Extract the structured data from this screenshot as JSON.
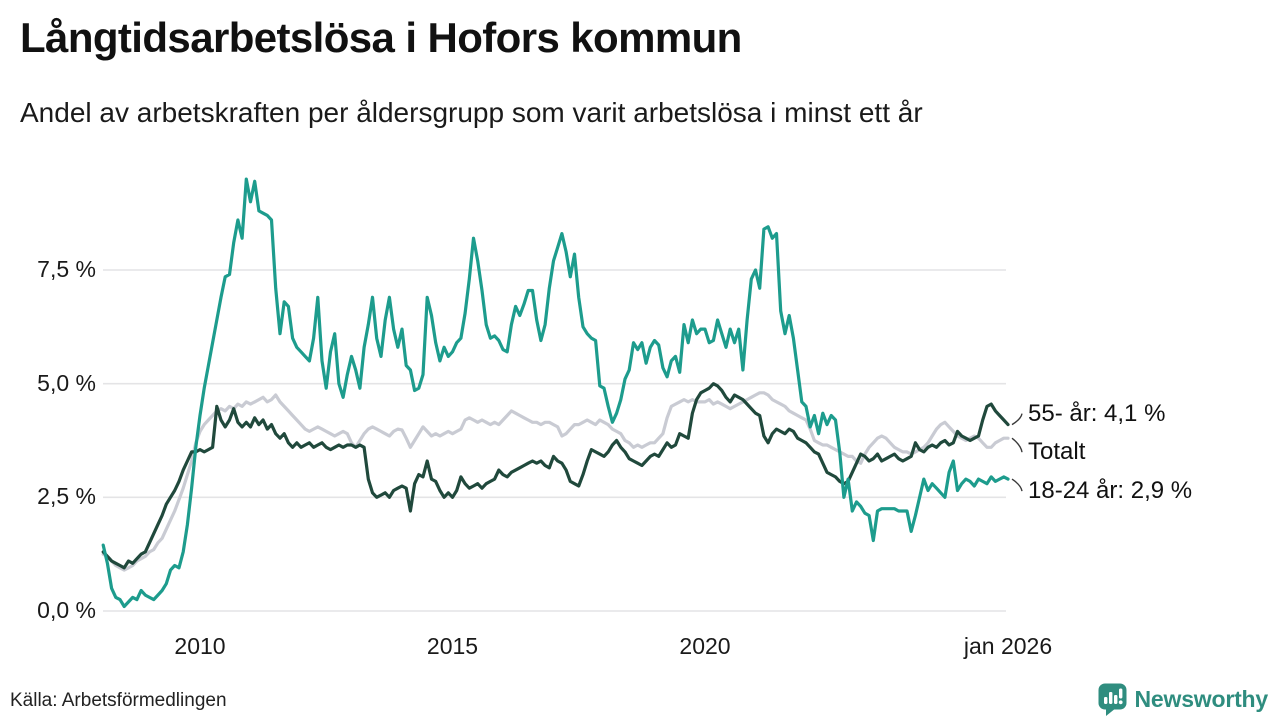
{
  "header": {
    "title": "Långtidsarbetslösa i Hofors kommun",
    "subtitle": "Andel av arbetskraften per åldersgrupp som varit arbetslösa i minst ett år"
  },
  "footer": {
    "source": "Källa: Arbetsförmedlingen",
    "brand": "Newsworthy"
  },
  "colors": {
    "teal": "#1d9c8d",
    "dark_green": "#20493c",
    "gray": "#c9cbd3",
    "grid": "#e4e4e6",
    "connector": "#3a3a3a",
    "brand_teal": "#2f8d7f",
    "text": "#1a1a1a"
  },
  "chart_data": {
    "type": "line",
    "title": "Långtidsarbetslösa i Hofors kommun",
    "xlabel": "",
    "ylabel": "",
    "x_unit": "year (monthly points)",
    "x_start": 2008.0833,
    "x_step": 0.0833333,
    "xlim": [
      2008.0,
      2026.2
    ],
    "ylim": [
      0,
      9.8
    ],
    "grid": "horizontal",
    "legend_position": "right-end-labels",
    "y_ticks": [
      {
        "value": 0,
        "label": "0,0 %"
      },
      {
        "value": 2.5,
        "label": "2,5 %"
      },
      {
        "value": 5,
        "label": "5,0 %"
      },
      {
        "value": 7.5,
        "label": "7,5 %"
      }
    ],
    "x_ticks": [
      {
        "value": 2010,
        "label": "2010"
      },
      {
        "value": 2015,
        "label": "2015"
      },
      {
        "value": 2020,
        "label": "2020"
      },
      {
        "value": 2026,
        "label": "jan 2026"
      }
    ],
    "series": [
      {
        "name": "Totalt",
        "color": "gray",
        "end_label": "Totalt",
        "label_dy": 14,
        "values": [
          1.25,
          1.2,
          1.1,
          1.0,
          0.95,
          0.9,
          0.95,
          1.0,
          1.1,
          1.15,
          1.2,
          1.3,
          1.35,
          1.5,
          1.6,
          1.8,
          2.0,
          2.2,
          2.45,
          2.7,
          3.0,
          3.3,
          3.7,
          3.95,
          4.1,
          4.2,
          4.3,
          4.4,
          4.45,
          4.4,
          4.5,
          4.45,
          4.55,
          4.5,
          4.6,
          4.55,
          4.6,
          4.65,
          4.7,
          4.6,
          4.65,
          4.75,
          4.6,
          4.5,
          4.4,
          4.3,
          4.2,
          4.1,
          4.0,
          3.95,
          4.0,
          4.05,
          4.0,
          3.95,
          3.9,
          3.85,
          3.9,
          3.95,
          3.9,
          3.7,
          3.6,
          3.75,
          3.9,
          4.0,
          4.05,
          4.0,
          3.95,
          3.9,
          3.85,
          3.95,
          4.0,
          3.98,
          3.8,
          3.6,
          3.75,
          3.9,
          4.05,
          3.95,
          3.85,
          3.9,
          3.85,
          3.9,
          3.95,
          3.9,
          3.95,
          4.0,
          4.2,
          4.25,
          4.2,
          4.15,
          4.2,
          4.15,
          4.1,
          4.15,
          4.1,
          4.2,
          4.3,
          4.4,
          4.35,
          4.3,
          4.25,
          4.2,
          4.15,
          4.15,
          4.1,
          4.15,
          4.15,
          4.1,
          4.05,
          3.85,
          3.9,
          4.0,
          4.1,
          4.1,
          4.15,
          4.2,
          4.15,
          4.1,
          4.2,
          4.15,
          4.1,
          4.0,
          3.95,
          3.9,
          3.75,
          3.7,
          3.6,
          3.65,
          3.6,
          3.65,
          3.7,
          3.7,
          3.8,
          3.9,
          4.25,
          4.5,
          4.55,
          4.6,
          4.65,
          4.6,
          4.65,
          4.6,
          4.6,
          4.6,
          4.65,
          4.55,
          4.6,
          4.55,
          4.5,
          4.45,
          4.5,
          4.55,
          4.6,
          4.65,
          4.7,
          4.75,
          4.8,
          4.8,
          4.75,
          4.65,
          4.6,
          4.55,
          4.5,
          4.4,
          4.35,
          4.3,
          4.25,
          4.2,
          4.0,
          3.75,
          3.7,
          3.65,
          3.65,
          3.6,
          3.55,
          3.5,
          3.45,
          3.4,
          3.4,
          3.3,
          3.25,
          3.45,
          3.6,
          3.7,
          3.8,
          3.85,
          3.8,
          3.7,
          3.6,
          3.55,
          3.5,
          3.5,
          3.45,
          3.5,
          3.55,
          3.6,
          3.7,
          3.85,
          4.0,
          4.1,
          4.15,
          4.05,
          3.95,
          3.85,
          3.8,
          3.75,
          3.8,
          3.85,
          3.8,
          3.7,
          3.6,
          3.6,
          3.7,
          3.75,
          3.8,
          3.8
        ]
      },
      {
        "name": "55- år",
        "color": "dark_green",
        "end_label": "55- år: 4,1 %",
        "label_dy": -11,
        "values": [
          1.3,
          1.2,
          1.1,
          1.05,
          1.0,
          0.95,
          1.1,
          1.05,
          1.15,
          1.25,
          1.3,
          1.5,
          1.7,
          1.9,
          2.1,
          2.35,
          2.5,
          2.65,
          2.85,
          3.1,
          3.3,
          3.5,
          3.5,
          3.55,
          3.5,
          3.55,
          3.6,
          4.5,
          4.2,
          4.05,
          4.2,
          4.45,
          4.15,
          4.05,
          4.15,
          4.05,
          4.25,
          4.1,
          4.2,
          4.0,
          4.1,
          3.9,
          3.8,
          3.9,
          3.7,
          3.6,
          3.7,
          3.6,
          3.65,
          3.7,
          3.6,
          3.65,
          3.7,
          3.6,
          3.55,
          3.6,
          3.65,
          3.6,
          3.65,
          3.65,
          3.6,
          3.65,
          3.6,
          2.9,
          2.6,
          2.5,
          2.55,
          2.6,
          2.5,
          2.65,
          2.7,
          2.75,
          2.7,
          2.2,
          2.8,
          3.0,
          2.95,
          3.3,
          2.9,
          2.85,
          2.65,
          2.5,
          2.6,
          2.5,
          2.65,
          2.95,
          2.8,
          2.7,
          2.75,
          2.8,
          2.7,
          2.8,
          2.85,
          2.9,
          3.1,
          3.0,
          2.95,
          3.05,
          3.1,
          3.15,
          3.2,
          3.25,
          3.3,
          3.25,
          3.3,
          3.2,
          3.15,
          3.4,
          3.3,
          3.25,
          3.1,
          2.85,
          2.8,
          2.75,
          3.0,
          3.3,
          3.55,
          3.5,
          3.45,
          3.4,
          3.5,
          3.65,
          3.75,
          3.6,
          3.5,
          3.35,
          3.3,
          3.25,
          3.2,
          3.3,
          3.4,
          3.45,
          3.4,
          3.55,
          3.7,
          3.6,
          3.65,
          3.9,
          3.85,
          3.8,
          4.35,
          4.65,
          4.8,
          4.85,
          4.9,
          5.0,
          4.95,
          4.85,
          4.7,
          4.6,
          4.75,
          4.7,
          4.65,
          4.55,
          4.45,
          4.35,
          4.3,
          3.85,
          3.7,
          3.9,
          4.0,
          3.95,
          3.9,
          4.0,
          3.95,
          3.8,
          3.75,
          3.7,
          3.6,
          3.5,
          3.45,
          3.25,
          3.05,
          3.0,
          2.95,
          2.85,
          2.8,
          2.85,
          3.05,
          3.25,
          3.45,
          3.4,
          3.3,
          3.35,
          3.45,
          3.3,
          3.35,
          3.4,
          3.45,
          3.35,
          3.3,
          3.35,
          3.4,
          3.7,
          3.55,
          3.5,
          3.6,
          3.65,
          3.6,
          3.7,
          3.75,
          3.65,
          3.7,
          3.95,
          3.85,
          3.8,
          3.75,
          3.8,
          3.85,
          4.2,
          4.5,
          4.55,
          4.4,
          4.3,
          4.2,
          4.1
        ]
      },
      {
        "name": "18-24 år",
        "color": "teal",
        "end_label": "18-24 år: 2,9 %",
        "label_dy": 12,
        "values": [
          1.45,
          1.05,
          0.5,
          0.3,
          0.25,
          0.1,
          0.2,
          0.3,
          0.25,
          0.45,
          0.35,
          0.3,
          0.25,
          0.35,
          0.45,
          0.6,
          0.9,
          1.0,
          0.95,
          1.3,
          1.9,
          2.7,
          3.6,
          4.3,
          4.9,
          5.4,
          5.9,
          6.4,
          6.9,
          7.35,
          7.4,
          8.1,
          8.6,
          8.2,
          9.5,
          9.0,
          9.45,
          8.8,
          8.75,
          8.7,
          8.6,
          7.1,
          6.1,
          6.8,
          6.7,
          6.0,
          5.8,
          5.7,
          5.6,
          5.5,
          6.0,
          6.9,
          5.5,
          4.9,
          5.7,
          6.1,
          5.0,
          4.7,
          5.2,
          5.6,
          5.3,
          4.9,
          5.8,
          6.3,
          6.9,
          6.0,
          5.6,
          6.4,
          6.9,
          6.2,
          5.8,
          6.2,
          5.4,
          5.3,
          4.85,
          4.9,
          5.2,
          6.9,
          6.5,
          5.9,
          5.5,
          5.8,
          5.6,
          5.7,
          5.9,
          6.0,
          6.55,
          7.3,
          8.2,
          7.7,
          7.05,
          6.3,
          6.0,
          6.05,
          5.95,
          5.75,
          5.7,
          6.3,
          6.7,
          6.5,
          6.75,
          7.05,
          7.05,
          6.4,
          5.95,
          6.3,
          7.1,
          7.7,
          8.0,
          8.3,
          7.9,
          7.35,
          7.85,
          6.9,
          6.25,
          6.1,
          6.0,
          5.95,
          4.95,
          4.9,
          4.5,
          4.15,
          4.35,
          4.65,
          5.1,
          5.3,
          5.9,
          5.75,
          5.9,
          5.45,
          5.8,
          5.95,
          5.85,
          5.35,
          5.15,
          5.5,
          5.6,
          5.25,
          6.3,
          5.9,
          6.4,
          6.1,
          6.2,
          6.2,
          5.9,
          5.95,
          6.4,
          6.1,
          5.8,
          6.2,
          5.9,
          6.2,
          5.3,
          6.4,
          7.3,
          7.5,
          7.1,
          8.4,
          8.45,
          8.2,
          8.3,
          6.6,
          6.1,
          6.5,
          6.0,
          5.3,
          4.6,
          4.5,
          4.05,
          4.3,
          3.9,
          4.35,
          4.1,
          4.3,
          4.2,
          3.5,
          2.5,
          2.9,
          2.2,
          2.4,
          2.3,
          2.15,
          2.1,
          1.55,
          2.2,
          2.25,
          2.25,
          2.25,
          2.25,
          2.2,
          2.2,
          2.2,
          1.75,
          2.1,
          2.5,
          2.9,
          2.65,
          2.8,
          2.7,
          2.6,
          2.5,
          3.05,
          3.3,
          2.65,
          2.8,
          2.9,
          2.85,
          2.75,
          2.9,
          2.85,
          2.8,
          2.95,
          2.85,
          2.9,
          2.95,
          2.9
        ]
      }
    ]
  }
}
